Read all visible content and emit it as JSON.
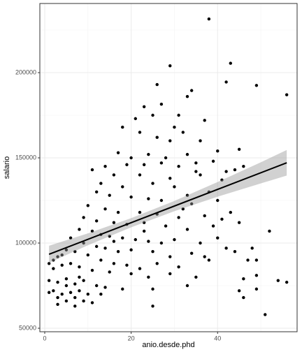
{
  "chart_data": {
    "type": "scatter",
    "x_label": "anio.desde.phd",
    "y_label": "salario",
    "xlim": [
      -1.13,
      58.4
    ],
    "ylim": [
      47951,
      240574
    ],
    "xticks": [
      0,
      20,
      40
    ],
    "yticks": [
      50000,
      100000,
      150000,
      200000
    ],
    "xminor": [
      10,
      30,
      50
    ],
    "yminor": [
      75000,
      125000,
      175000,
      225000
    ],
    "grid": true,
    "color": "#000000",
    "x": [
      38,
      29,
      43,
      49,
      56,
      42,
      26,
      33,
      34,
      23,
      27,
      31,
      18,
      21,
      25,
      30,
      37,
      26,
      22,
      32,
      36,
      45,
      40,
      17,
      20,
      24,
      28,
      33,
      39,
      11,
      14,
      19,
      23,
      27,
      31,
      35,
      42,
      44,
      46,
      16,
      22,
      29,
      36,
      41,
      13,
      18,
      25,
      30,
      33,
      38,
      12,
      15,
      20,
      24,
      27,
      34,
      40,
      10,
      14,
      17,
      22,
      26,
      31,
      37,
      43,
      9,
      12,
      16,
      19,
      23,
      28,
      33,
      39,
      45,
      8,
      11,
      13,
      15,
      18,
      21,
      24,
      27,
      30,
      36,
      40,
      42,
      48,
      52,
      6,
      9,
      12,
      14,
      17,
      20,
      25,
      29,
      34,
      38,
      44,
      47,
      49,
      5,
      7,
      10,
      13,
      16,
      19,
      22,
      26,
      31,
      37,
      2,
      3,
      4,
      1,
      2,
      4,
      6,
      8,
      11,
      15,
      20,
      24,
      29,
      35,
      46,
      49,
      54,
      56,
      1,
      3,
      5,
      7,
      9,
      12,
      14,
      18,
      25,
      33,
      45,
      49,
      2,
      4,
      6,
      8,
      10,
      13,
      1,
      3,
      5,
      7,
      9,
      11,
      3,
      7,
      25,
      46,
      51,
      5,
      8,
      16,
      23,
      32,
      29,
      35,
      41
    ],
    "values": [
      231500,
      204000,
      205500,
      192500,
      187000,
      194500,
      193000,
      186000,
      189500,
      180000,
      181500,
      175000,
      168000,
      173000,
      175000,
      168000,
      172000,
      162000,
      165000,
      165000,
      160000,
      155000,
      154000,
      153000,
      150000,
      152000,
      150000,
      152000,
      148000,
      143000,
      145000,
      146000,
      146000,
      147000,
      145000,
      147000,
      142000,
      143000,
      145000,
      140000,
      140000,
      138000,
      140000,
      137000,
      135000,
      133000,
      135000,
      133000,
      128000,
      130000,
      130000,
      128000,
      127000,
      126000,
      125000,
      123000,
      125000,
      122000,
      120000,
      118000,
      118000,
      117000,
      115000,
      116000,
      118000,
      115000,
      113000,
      112000,
      111000,
      112000,
      110000,
      108000,
      110000,
      112000,
      108000,
      107000,
      105000,
      104000,
      103000,
      102000,
      101000,
      100000,
      102000,
      100000,
      103000,
      97000,
      97000,
      107000,
      103000,
      100000,
      98000,
      97000,
      95000,
      96000,
      95000,
      92000,
      94000,
      90000,
      95000,
      90000,
      90000,
      96000,
      95000,
      93000,
      90000,
      88000,
      87000,
      85000,
      88000,
      86000,
      92000,
      90000,
      92000,
      93000,
      88000,
      85000,
      87000,
      88000,
      86000,
      84000,
      83000,
      82000,
      80000,
      82000,
      80000,
      79000,
      81000,
      78000,
      77000,
      78000,
      77000,
      79000,
      76000,
      78000,
      75000,
      74000,
      73000,
      73000,
      75000,
      72000,
      73000,
      72000,
      70000,
      71000,
      72000,
      70000,
      70000,
      71000,
      68000,
      66000,
      68000,
      66000,
      65000,
      64000,
      63000,
      63000,
      68000,
      58000,
      75000,
      80000,
      101000,
      107000,
      120000,
      160000,
      142000,
      114000
    ],
    "fit": {
      "x": [
        1,
        56
      ],
      "values": [
        93400,
        147100
      ]
    },
    "band": {
      "x": [
        1,
        10,
        20,
        30,
        40,
        50,
        56
      ],
      "lower": [
        88400,
        98700,
        109200,
        118700,
        127200,
        135000,
        139600
      ],
      "upper": [
        98400,
        105700,
        114600,
        124700,
        135800,
        147400,
        154600
      ]
    }
  }
}
